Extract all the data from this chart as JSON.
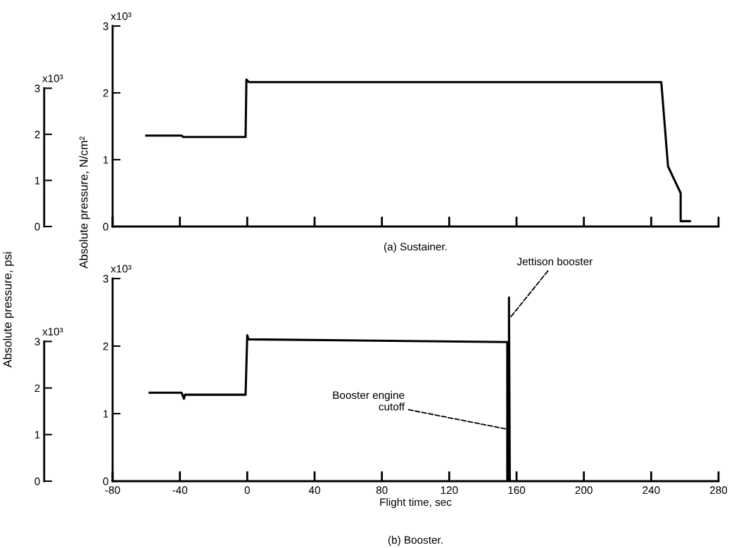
{
  "chart_data": [
    {
      "type": "line",
      "title": "(a) Sustainer.",
      "ylabel": "Absolute pressure, N/cm²",
      "y2label": "Absolute pressure, psi",
      "x": [
        -60,
        -39,
        -38,
        -1,
        -0.5,
        1,
        246,
        250,
        257.5,
        257.5,
        263
      ],
      "series": [
        {
          "color": "#000000",
          "values": [
            1.36,
            1.36,
            1.34,
            1.34,
            2.2,
            2.16,
            2.16,
            0.9,
            0.5,
            0.08,
            0.08
          ]
        }
      ],
      "xlim": [
        -80,
        280
      ],
      "xticks": [
        -80,
        -40,
        0,
        40,
        80,
        120,
        160,
        200,
        240,
        280
      ],
      "ylim": [
        0,
        3
      ],
      "yticks": [
        0,
        1,
        2,
        3
      ],
      "y2lim": [
        0,
        4.35
      ],
      "y2ticks": [
        0,
        1,
        2,
        3
      ],
      "annotations": [
        "x10³",
        "x10³"
      ],
      "tick_labels": "y",
      "grid": false
    },
    {
      "type": "line",
      "title": "(b) Booster.",
      "xlabel": "Flight time, sec",
      "x": [
        -58,
        -39,
        -37.6,
        -37,
        -1,
        0,
        0.8,
        154.5,
        154.5,
        155.5,
        155.5,
        156
      ],
      "series": [
        {
          "color": "#000000",
          "values": [
            1.31,
            1.31,
            1.22,
            1.28,
            1.28,
            2.16,
            2.1,
            2.06,
            0,
            0,
            2.72,
            0
          ]
        }
      ],
      "xlim": [
        -80,
        280
      ],
      "xticks": [
        -80,
        -40,
        0,
        40,
        80,
        120,
        160,
        200,
        240,
        280
      ],
      "ylim": [
        0,
        3
      ],
      "yticks": [
        0,
        1,
        2,
        3
      ],
      "y2lim": [
        0,
        4.35
      ],
      "y2ticks": [
        0,
        1,
        2,
        3
      ],
      "annotations": [
        {
          "text": "Booster engine\ncutoff",
          "x": 154.5,
          "y": 0.77
        },
        {
          "text": "Jettison booster",
          "x": 155.5,
          "y": 2.4
        },
        "x10³",
        "x10³"
      ],
      "grid": false
    }
  ]
}
